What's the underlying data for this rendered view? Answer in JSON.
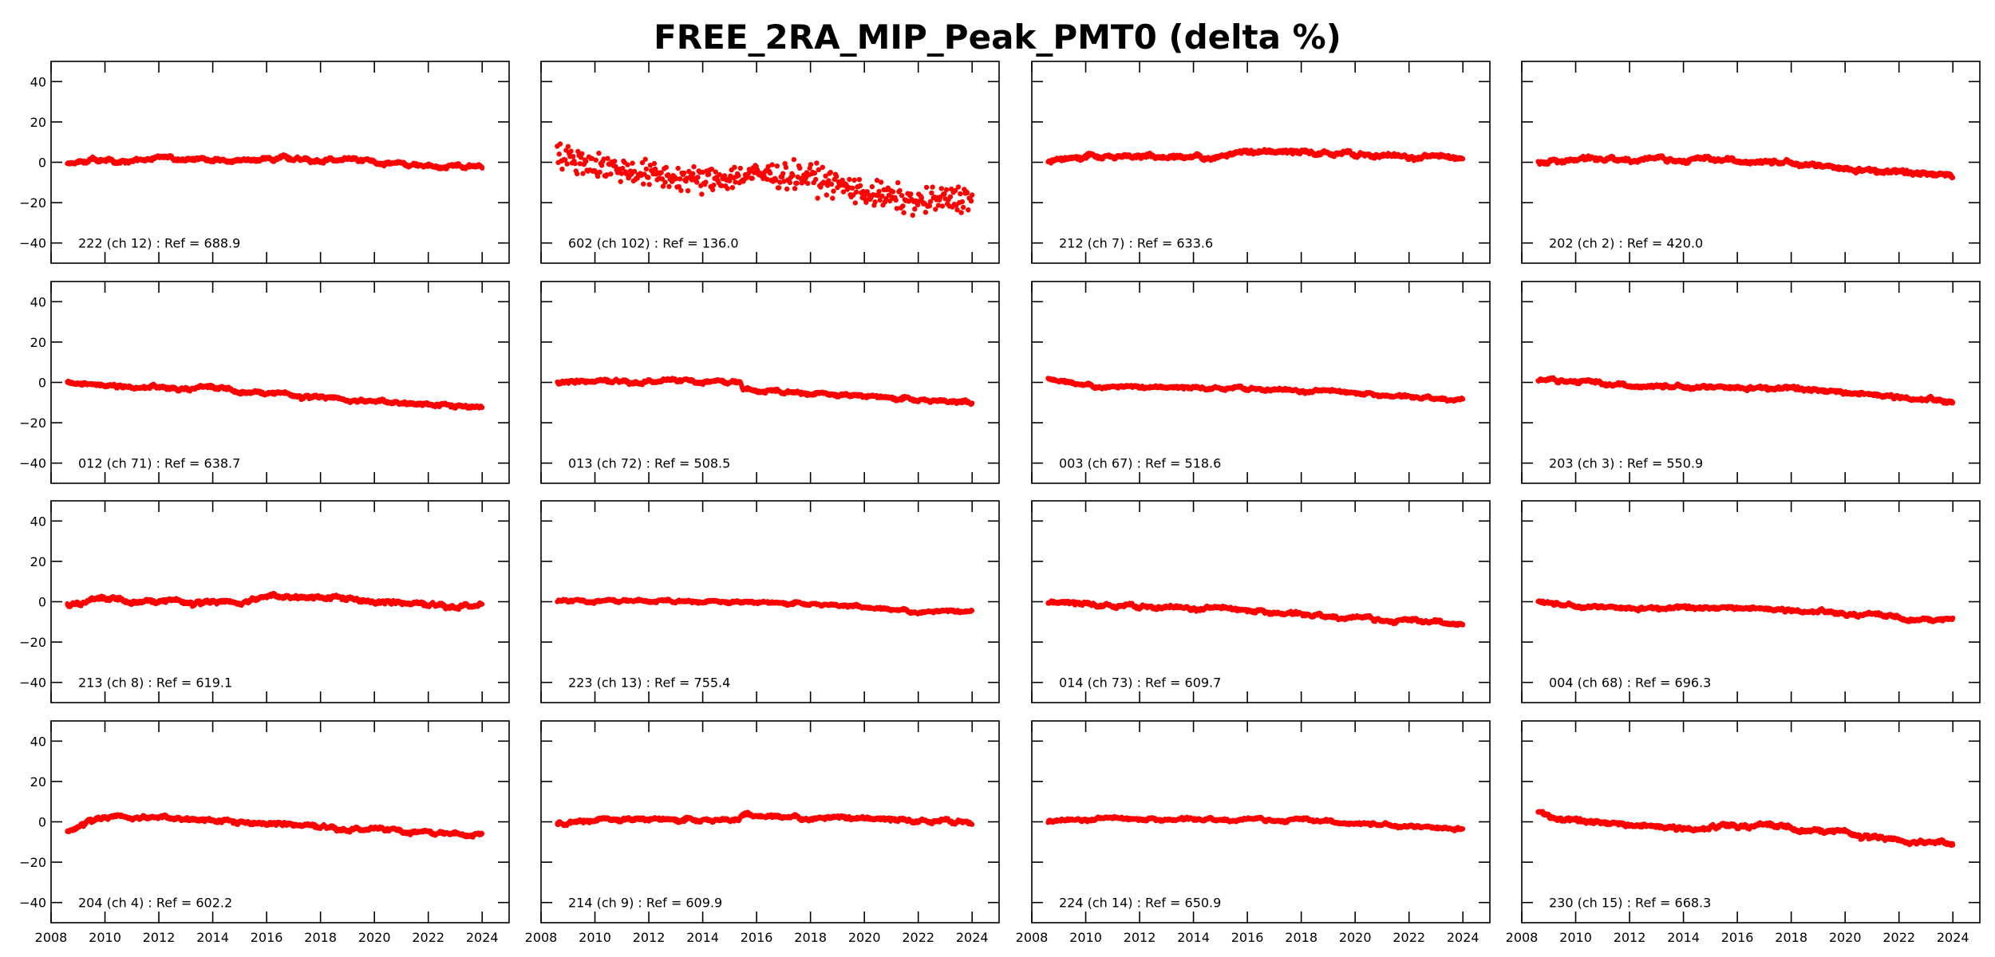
{
  "chart_data": {
    "type": "scatter",
    "title": "FREE_2RA_MIP_Peak_PMT0 (delta %)",
    "layout": "4x4 grid of small multiples",
    "xlabel": "",
    "ylabel": "",
    "xlim": [
      2008,
      2025
    ],
    "ylim": [
      -50,
      50
    ],
    "xticks": [
      2008,
      2010,
      2012,
      2014,
      2016,
      2018,
      2020,
      2022,
      2024
    ],
    "xtick_labels": [
      "2008",
      "2010",
      "2012",
      "2014",
      "2016",
      "2018",
      "2020",
      "2022",
      "2024"
    ],
    "yticks": [
      -40,
      -20,
      0,
      20,
      40
    ],
    "ytick_labels": [
      "−40",
      "−20",
      "0",
      "20",
      "40"
    ],
    "grid": false,
    "marker_color": "#ff0000",
    "x_range_of_data": [
      2008.6,
      2024.0
    ],
    "panels": [
      {
        "label": "222 (ch 12) : Ref = 688.9",
        "trend": [
          [
            2008.6,
            -1
          ],
          [
            2009.5,
            1
          ],
          [
            2012,
            1.5
          ],
          [
            2015,
            1.5
          ],
          [
            2017,
            2
          ],
          [
            2018.5,
            1.5
          ],
          [
            2020,
            0
          ],
          [
            2022,
            -2
          ],
          [
            2024,
            -2
          ]
        ],
        "noise": 1.2,
        "sparse": false
      },
      {
        "label": "602 (ch 102) : Ref = 136.0",
        "trend": [
          [
            2008.6,
            3
          ],
          [
            2010,
            -1
          ],
          [
            2012,
            -6
          ],
          [
            2014,
            -9
          ],
          [
            2016,
            -6
          ],
          [
            2018,
            -7
          ],
          [
            2020,
            -15
          ],
          [
            2022,
            -20
          ],
          [
            2024,
            -17
          ]
        ],
        "noise": 8,
        "sparse": true
      },
      {
        "label": "212 (ch 7) : Ref = 633.6",
        "trend": [
          [
            2008.6,
            0
          ],
          [
            2010,
            3
          ],
          [
            2013,
            3
          ],
          [
            2015,
            3.5
          ],
          [
            2016,
            5
          ],
          [
            2018,
            5
          ],
          [
            2020,
            4
          ],
          [
            2022,
            3
          ],
          [
            2024,
            2
          ]
        ],
        "noise": 1.4,
        "sparse": false
      },
      {
        "label": "202 (ch 2) : Ref = 420.0",
        "trend": [
          [
            2008.6,
            0
          ],
          [
            2010,
            2
          ],
          [
            2013,
            2
          ],
          [
            2016,
            1
          ],
          [
            2018,
            0
          ],
          [
            2020,
            -2.5
          ],
          [
            2022,
            -5
          ],
          [
            2024,
            -6
          ]
        ],
        "noise": 1.4,
        "sparse": false
      },
      {
        "label": "012 (ch 71) : Ref = 638.7",
        "trend": [
          [
            2008.6,
            0
          ],
          [
            2011,
            -2
          ],
          [
            2014,
            -3
          ],
          [
            2016,
            -5
          ],
          [
            2018,
            -7
          ],
          [
            2020,
            -9.5
          ],
          [
            2022,
            -11
          ],
          [
            2024,
            -12
          ]
        ],
        "noise": 1.1,
        "sparse": false
      },
      {
        "label": "013 (ch 72) : Ref = 508.5",
        "trend": [
          [
            2008.6,
            0
          ],
          [
            2010.5,
            1
          ],
          [
            2013,
            0.5
          ],
          [
            2015.4,
            0
          ],
          [
            2015.5,
            -3.5
          ],
          [
            2018,
            -5.5
          ],
          [
            2020,
            -7
          ],
          [
            2022,
            -8.5
          ],
          [
            2024,
            -10
          ]
        ],
        "noise": 1.1,
        "sparse": false
      },
      {
        "label": "003 (ch 67) : Ref = 518.6",
        "trend": [
          [
            2008.6,
            2
          ],
          [
            2010,
            -1
          ],
          [
            2012,
            -2.5
          ],
          [
            2016,
            -3
          ],
          [
            2018,
            -4
          ],
          [
            2020,
            -5
          ],
          [
            2022,
            -7
          ],
          [
            2024,
            -8
          ]
        ],
        "noise": 1.0,
        "sparse": false
      },
      {
        "label": "203 (ch 3) : Ref = 550.9",
        "trend": [
          [
            2008.6,
            1
          ],
          [
            2010,
            1.5
          ],
          [
            2011,
            -1
          ],
          [
            2014,
            -2
          ],
          [
            2016,
            -2
          ],
          [
            2018,
            -3
          ],
          [
            2020,
            -4.5
          ],
          [
            2022,
            -7
          ],
          [
            2024,
            -9.5
          ]
        ],
        "noise": 1.2,
        "sparse": false
      },
      {
        "label": "213 (ch 8) : Ref = 619.1",
        "trend": [
          [
            2008.6,
            -1
          ],
          [
            2010,
            1
          ],
          [
            2012,
            0.5
          ],
          [
            2015,
            0
          ],
          [
            2016,
            2.5
          ],
          [
            2018,
            2
          ],
          [
            2019,
            2
          ],
          [
            2020,
            0
          ],
          [
            2022,
            -1
          ],
          [
            2024,
            -2
          ]
        ],
        "noise": 1.3,
        "sparse": false
      },
      {
        "label": "223 (ch 13) : Ref = 755.4",
        "trend": [
          [
            2008.6,
            0
          ],
          [
            2012,
            0.5
          ],
          [
            2014,
            0
          ],
          [
            2016,
            -0.5
          ],
          [
            2018,
            -1
          ],
          [
            2020,
            -2.5
          ],
          [
            2022,
            -4.5
          ],
          [
            2024,
            -5
          ]
        ],
        "noise": 0.9,
        "sparse": false
      },
      {
        "label": "014 (ch 73) : Ref = 609.7",
        "trend": [
          [
            2008.6,
            0
          ],
          [
            2011,
            -2
          ],
          [
            2014,
            -3
          ],
          [
            2016,
            -4
          ],
          [
            2018,
            -6
          ],
          [
            2020,
            -7.5
          ],
          [
            2022,
            -9.5
          ],
          [
            2024,
            -10.5
          ]
        ],
        "noise": 1.2,
        "sparse": false
      },
      {
        "label": "004 (ch 68) : Ref = 696.3",
        "trend": [
          [
            2008.6,
            0
          ],
          [
            2010,
            -2
          ],
          [
            2013,
            -3
          ],
          [
            2015,
            -3
          ],
          [
            2016,
            -2.5
          ],
          [
            2018,
            -4
          ],
          [
            2020,
            -5.5
          ],
          [
            2022,
            -8
          ],
          [
            2024,
            -9
          ]
        ],
        "noise": 1.1,
        "sparse": false
      },
      {
        "label": "204 (ch 4) : Ref = 602.2",
        "trend": [
          [
            2008.6,
            -5
          ],
          [
            2009.3,
            1
          ],
          [
            2010.5,
            3
          ],
          [
            2012,
            2
          ],
          [
            2015,
            0
          ],
          [
            2018,
            -2
          ],
          [
            2020,
            -4
          ],
          [
            2022,
            -5.5
          ],
          [
            2024,
            -6.5
          ]
        ],
        "noise": 1.2,
        "sparse": false
      },
      {
        "label": "214 (ch 9) : Ref = 609.9",
        "trend": [
          [
            2008.6,
            -1
          ],
          [
            2010,
            1
          ],
          [
            2013,
            1
          ],
          [
            2015.3,
            1
          ],
          [
            2015.5,
            3.5
          ],
          [
            2018,
            2.5
          ],
          [
            2020,
            1.5
          ],
          [
            2022,
            0.5
          ],
          [
            2024,
            0
          ]
        ],
        "noise": 1.2,
        "sparse": false
      },
      {
        "label": "224 (ch 14) : Ref = 650.9",
        "trend": [
          [
            2008.6,
            0
          ],
          [
            2010,
            1.5
          ],
          [
            2013,
            1.5
          ],
          [
            2016,
            1.5
          ],
          [
            2018,
            1
          ],
          [
            2020,
            -0.5
          ],
          [
            2022,
            -2
          ],
          [
            2024,
            -3
          ]
        ],
        "noise": 1.0,
        "sparse": false
      },
      {
        "label": "230 (ch 15) : Ref = 668.3",
        "trend": [
          [
            2008.6,
            5
          ],
          [
            2009.5,
            1
          ],
          [
            2012,
            -1
          ],
          [
            2014,
            -3
          ],
          [
            2015.2,
            -3
          ],
          [
            2015.5,
            -1
          ],
          [
            2018,
            -3
          ],
          [
            2020,
            -5
          ],
          [
            2022,
            -9
          ],
          [
            2024,
            -11
          ]
        ],
        "noise": 1.3,
        "sparse": false
      }
    ]
  }
}
